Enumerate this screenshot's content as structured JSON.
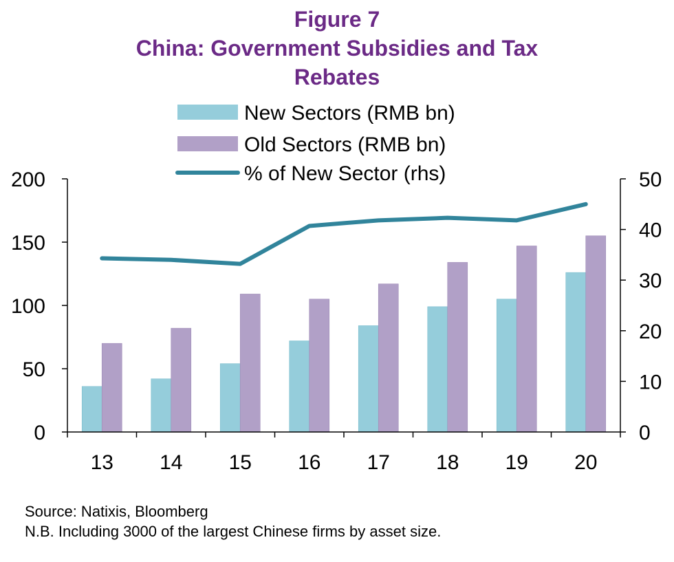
{
  "title": {
    "line1": "Figure 7",
    "line2": "China: Government Subsidies and Tax",
    "line3": "Rebates"
  },
  "colors": {
    "title": "#6b2a86",
    "new_sectors": "#95cddb",
    "old_sectors": "#b1a0c7",
    "line": "#31849b",
    "axis": "#000000"
  },
  "chart_data": {
    "type": "bar",
    "categories": [
      "13",
      "14",
      "15",
      "16",
      "17",
      "18",
      "19",
      "20"
    ],
    "series": [
      {
        "name": "New Sectors (RMB bn)",
        "type": "bar",
        "axis": "left",
        "values": [
          36,
          42,
          54,
          72,
          84,
          99,
          105,
          126
        ]
      },
      {
        "name": "Old Sectors (RMB bn)",
        "type": "bar",
        "axis": "left",
        "values": [
          70,
          82,
          109,
          105,
          117,
          134,
          147,
          155
        ]
      },
      {
        "name": "% of New Sector (rhs)",
        "type": "line",
        "axis": "right",
        "values": [
          34.3,
          34.0,
          33.2,
          40.7,
          41.8,
          42.3,
          41.8,
          45.0
        ]
      }
    ],
    "ylim": [
      0,
      200
    ],
    "y2lim": [
      0,
      50
    ],
    "yticks": [
      "0",
      "50",
      "100",
      "150",
      "200"
    ],
    "y2ticks": [
      "0",
      "10",
      "20",
      "30",
      "40",
      "50"
    ],
    "legend_position": "top-center",
    "grid": false
  },
  "footer": {
    "source": "Source: Natixis, Bloomberg",
    "note": "N.B. Including 3000 of the largest Chinese firms by asset size."
  }
}
